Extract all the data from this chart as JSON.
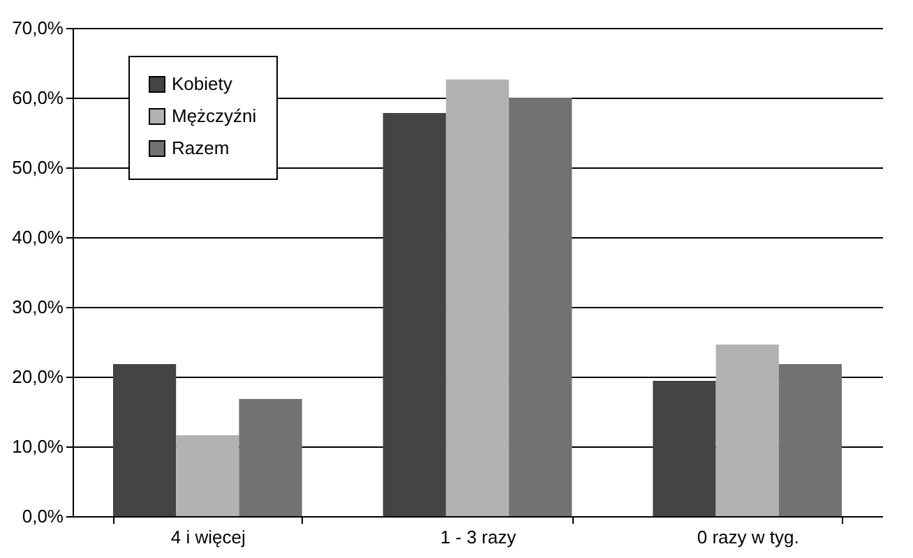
{
  "chart_data": {
    "type": "bar",
    "categories": [
      "4 i więcej",
      "1 - 3 razy",
      "0 razy w tyg."
    ],
    "series": [
      {
        "name": "Kobiety",
        "color": "#444444",
        "values": [
          21.8,
          57.8,
          19.4
        ]
      },
      {
        "name": "Mężczyźni",
        "color": "#b2b2b2",
        "values": [
          11.6,
          62.6,
          24.6
        ]
      },
      {
        "name": "Razem",
        "color": "#727272",
        "values": [
          16.8,
          60.0,
          21.8
        ]
      }
    ],
    "ylim": [
      0,
      70
    ],
    "yticks": [
      {
        "value": 0,
        "label": "0,0%"
      },
      {
        "value": 10,
        "label": "10,0%"
      },
      {
        "value": 20,
        "label": "20,0%"
      },
      {
        "value": 30,
        "label": "30,0%"
      },
      {
        "value": 40,
        "label": "40,0%"
      },
      {
        "value": 50,
        "label": "50,0%"
      },
      {
        "value": 60,
        "label": "60,0%"
      },
      {
        "value": 70,
        "label": "70,0%"
      }
    ],
    "grid": "y",
    "legend": "top left"
  }
}
